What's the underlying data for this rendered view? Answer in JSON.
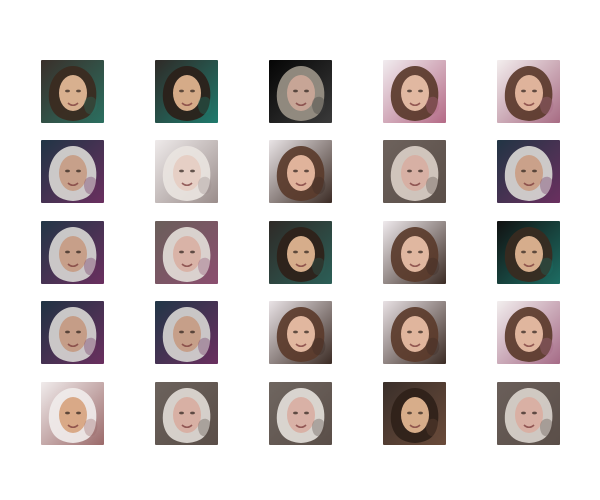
{
  "grid": {
    "rows": 5,
    "cols": 5,
    "tiles": [
      {
        "kind": "face-sample",
        "bg": "#3a2f2a",
        "hair": "#3b2a20",
        "skin": "#d8b08f",
        "accent": "#2b6f60"
      },
      {
        "kind": "face-sample",
        "bg": "#2f2a27",
        "hair": "#2b1f19",
        "skin": "#d5ab88",
        "accent": "#1f7a6d"
      },
      {
        "kind": "face-sample",
        "bg": "#050505",
        "hair": "#9a9387",
        "skin": "#c7a596",
        "accent": "#3a3a3a"
      },
      {
        "kind": "face-sample",
        "bg": "#f1ecef",
        "hair": "#5a3a2b",
        "skin": "#e1b8a1",
        "accent": "#b46a86"
      },
      {
        "kind": "face-sample",
        "bg": "#f3eeee",
        "hair": "#5b3a2b",
        "skin": "#dfb39b",
        "accent": "#a76b83"
      },
      {
        "kind": "face-sample",
        "bg": "#203545",
        "hair": "#d8d6d3",
        "skin": "#c7a08a",
        "accent": "#6a2f5f"
      },
      {
        "kind": "face-sample",
        "bg": "#eeeaea",
        "hair": "#e9e4e0",
        "skin": "#e6cfc5",
        "accent": "#9a8d8b"
      },
      {
        "kind": "face-sample",
        "bg": "#e9e4e6",
        "hair": "#5a3b2b",
        "skin": "#e0b39b",
        "accent": "#3b2b24"
      },
      {
        "kind": "face-sample",
        "bg": "#6d625c",
        "hair": "#d9cec6",
        "skin": "#d7b0a4",
        "accent": "#5a4e48"
      },
      {
        "kind": "face-sample",
        "bg": "#213544",
        "hair": "#d8d6d3",
        "skin": "#caa18a",
        "accent": "#6a2f5f"
      },
      {
        "kind": "face-sample",
        "bg": "#223646",
        "hair": "#d6d4d1",
        "skin": "#c79f89",
        "accent": "#6a2f5f"
      },
      {
        "kind": "face-sample",
        "bg": "#6a5f5a",
        "hair": "#e2dcd7",
        "skin": "#d9b3a7",
        "accent": "#8b4e6f"
      },
      {
        "kind": "face-sample",
        "bg": "#2f2a27",
        "hair": "#2f2119",
        "skin": "#d6ad8b",
        "accent": "#2c5f57"
      },
      {
        "kind": "face-sample",
        "bg": "#efeaed",
        "hair": "#5a3b2b",
        "skin": "#e0b7a0",
        "accent": "#3b2b24"
      },
      {
        "kind": "face-sample",
        "bg": "#111111",
        "hair": "#3a2a20",
        "skin": "#d6ad8c",
        "accent": "#1d6d63"
      },
      {
        "kind": "face-sample",
        "bg": "#1f3343",
        "hair": "#d6d4d1",
        "skin": "#c59d87",
        "accent": "#6a2f5f"
      },
      {
        "kind": "face-sample",
        "bg": "#213647",
        "hair": "#d5d3d0",
        "skin": "#c69f89",
        "accent": "#6a2f5f"
      },
      {
        "kind": "face-sample",
        "bg": "#e9e3e6",
        "hair": "#5b3b2b",
        "skin": "#e1b79f",
        "accent": "#3b2b24"
      },
      {
        "kind": "face-sample",
        "bg": "#e8e1e4",
        "hair": "#5b3b2b",
        "skin": "#e0b59d",
        "accent": "#3b2b24"
      },
      {
        "kind": "face-sample",
        "bg": "#f2eeee",
        "hair": "#5b3b2b",
        "skin": "#e0b69e",
        "accent": "#a56a86"
      },
      {
        "kind": "face-sample",
        "bg": "#f0ebeb",
        "hair": "#f0ebea",
        "skin": "#d9a987",
        "accent": "#9b6a6a"
      },
      {
        "kind": "face-sample",
        "bg": "#6b625c",
        "hair": "#e0dad5",
        "skin": "#d8b0a4",
        "accent": "#5a4e48"
      },
      {
        "kind": "face-sample",
        "bg": "#6f6660",
        "hair": "#e3ded9",
        "skin": "#d9b1a6",
        "accent": "#5a4e48"
      },
      {
        "kind": "face-sample",
        "bg": "#3a2f2a",
        "hair": "#2f2119",
        "skin": "#d7ad8a",
        "accent": "#6a4b3a"
      },
      {
        "kind": "face-sample",
        "bg": "#6a5f5a",
        "hair": "#d9d2cc",
        "skin": "#d9b0a4",
        "accent": "#5a4e48"
      }
    ]
  }
}
